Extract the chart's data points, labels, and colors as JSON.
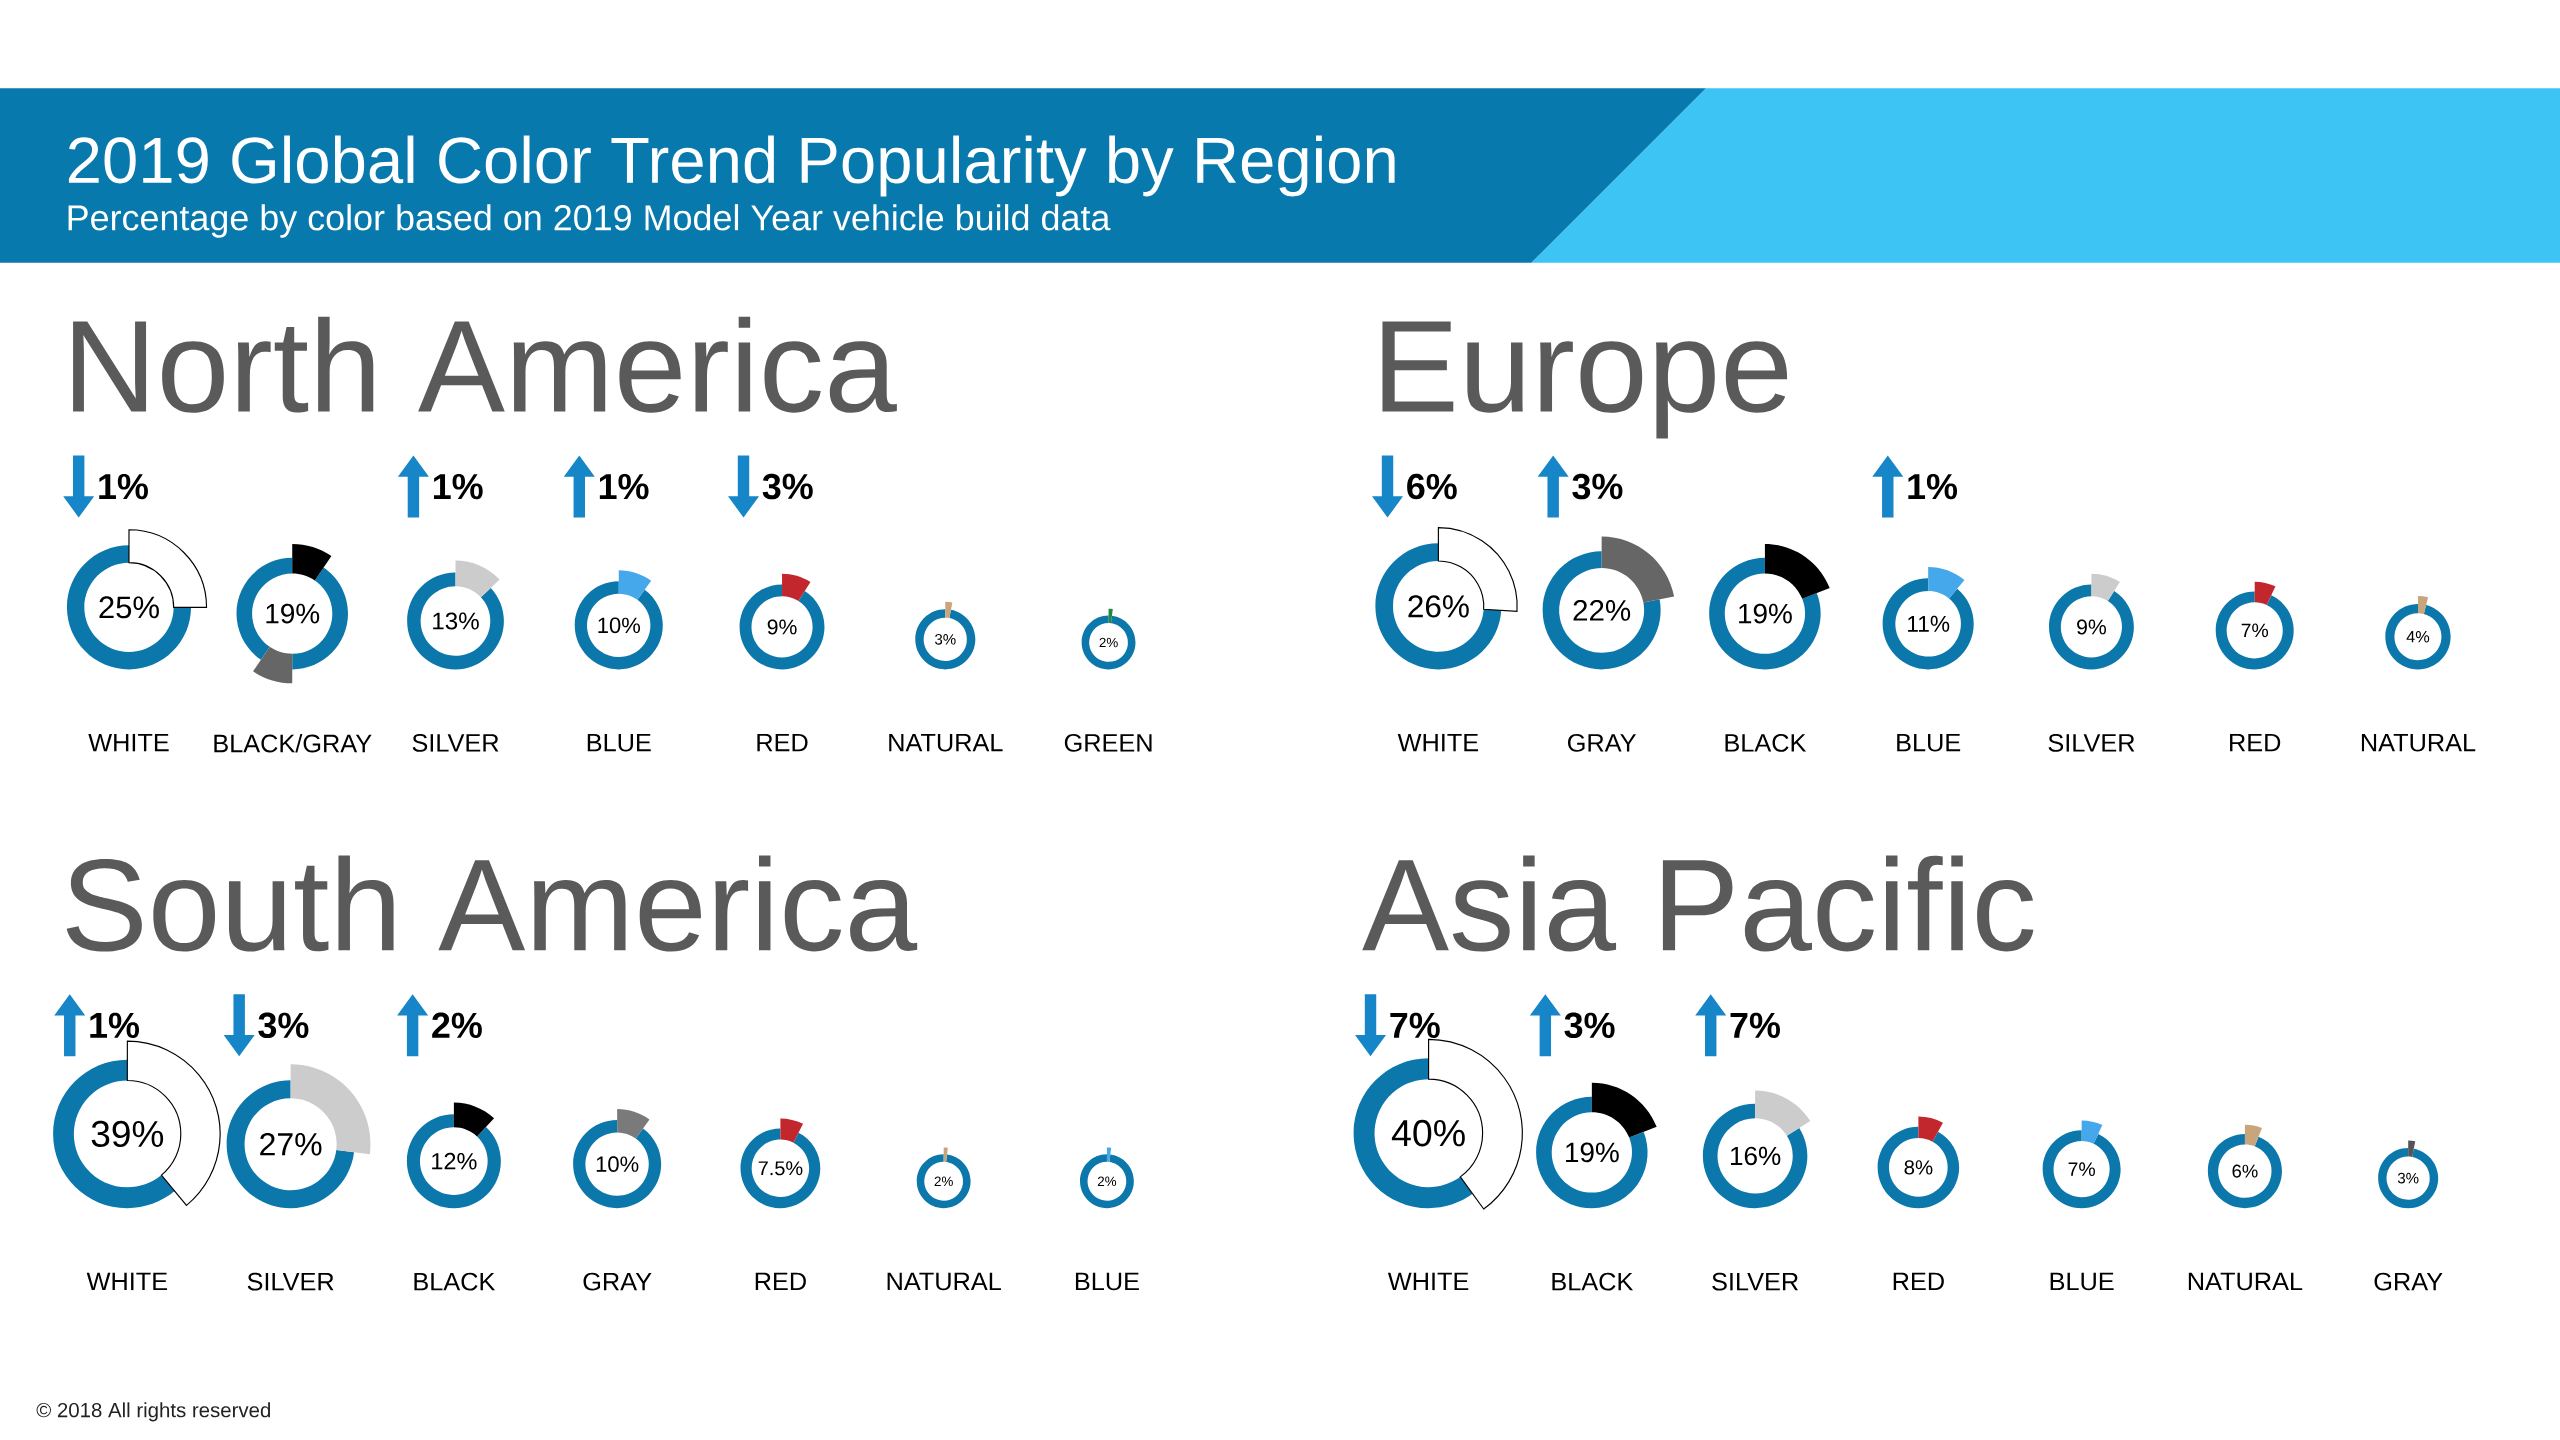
{
  "chart_data": [
    {
      "type": "other",
      "title": "2019 Global Color Trend Popularity by Region",
      "subtitle": "Percentage by color based on 2019 Model Year vehicle build data"
    },
    {
      "type": "other",
      "title": "North America",
      "categories": [
        "WHITE",
        "BLACK/GRAY",
        "SILVER",
        "BLUE",
        "RED",
        "NATURAL",
        "GREEN"
      ],
      "series": [
        {
          "color": "#0b77ab",
          "values": [
            25,
            19,
            13,
            10,
            9,
            3,
            2
          ],
          "value_labels": [
            "25%",
            "19%",
            "13%",
            "10%",
            "9%",
            "3%",
            "2%"
          ],
          "colors": [
            "#ffffff",
            [
              "#000000",
              "#666666"
            ],
            "#cccccc",
            "#45a8ea",
            "#c1272d",
            "#c8a57a",
            "#1f8a3c"
          ]
        },
        {
          "color": "#1686c9",
          "marker": "triangle",
          "values": [
            null,
            null,
            1,
            1,
            null,
            null,
            null
          ],
          "value_labels": [
            null,
            null,
            "1%",
            "1%",
            null,
            null,
            null
          ]
        },
        {
          "color": "#1686c9",
          "marker": "triangle-down",
          "values": [
            1,
            null,
            null,
            null,
            3,
            null,
            null
          ],
          "value_labels": [
            "1%",
            null,
            null,
            null,
            "3%",
            null,
            null
          ]
        }
      ]
    },
    {
      "type": "other",
      "title": "Europe",
      "categories": [
        "WHITE",
        "GRAY",
        "BLACK",
        "BLUE",
        "SILVER",
        "RED",
        "NATURAL"
      ],
      "series": [
        {
          "color": "#0b77ab",
          "values": [
            26,
            22,
            19,
            11,
            9,
            7,
            4
          ],
          "value_labels": [
            "26%",
            "22%",
            "19%",
            "11%",
            "9%",
            "7%",
            "4%"
          ],
          "colors": [
            "#ffffff",
            "#666666",
            "#000000",
            "#45a8ea",
            "#cccccc",
            "#c1272d",
            "#c8a57a"
          ]
        },
        {
          "color": "#1686c9",
          "marker": "triangle",
          "values": [
            null,
            3,
            null,
            1,
            null,
            null,
            null
          ],
          "value_labels": [
            null,
            "3%",
            null,
            "1%",
            null,
            null,
            null
          ]
        },
        {
          "color": "#1686c9",
          "marker": "triangle-down",
          "values": [
            6,
            null,
            null,
            null,
            null,
            null,
            null
          ],
          "value_labels": [
            "6%",
            null,
            null,
            null,
            null,
            null,
            null
          ]
        }
      ]
    },
    {
      "type": "other",
      "title": "South America",
      "categories": [
        "WHITE",
        "SILVER",
        "BLACK",
        "GRAY",
        "RED",
        "NATURAL",
        "BLUE"
      ],
      "series": [
        {
          "color": "#0b77ab",
          "values": [
            39,
            27,
            12,
            10,
            7.5,
            2,
            2
          ],
          "value_labels": [
            "39%",
            "27%",
            "12%",
            "10%",
            "7.5%",
            "2%",
            "2%"
          ],
          "colors": [
            "#ffffff",
            "#cccccc",
            "#000000",
            "#7a7a7a",
            "#c1272d",
            "#c8a57a",
            "#45a8ea"
          ]
        },
        {
          "color": "#1686c9",
          "marker": "triangle",
          "values": [
            1,
            null,
            2,
            null,
            null,
            null,
            null
          ],
          "value_labels": [
            "1%",
            null,
            "2%",
            null,
            null,
            null,
            null
          ]
        },
        {
          "color": "#1686c9",
          "marker": "triangle-down",
          "values": [
            null,
            3,
            null,
            null,
            null,
            null,
            null
          ],
          "value_labels": [
            null,
            "3%",
            null,
            null,
            null,
            null,
            null
          ]
        }
      ],
      "annotations": [
        "© 2018 All rights reserved"
      ]
    },
    {
      "type": "other",
      "title": "Asia Pacific",
      "categories": [
        "WHITE",
        "BLACK",
        "SILVER",
        "RED",
        "BLUE",
        "NATURAL",
        "GRAY"
      ],
      "series": [
        {
          "color": "#0b77ab",
          "values": [
            40,
            19,
            16,
            8,
            7,
            6,
            3
          ],
          "value_labels": [
            "40%",
            "19%",
            "16%",
            "8%",
            "7%",
            "6%",
            "3%"
          ],
          "colors": [
            "#ffffff",
            "#000000",
            "#cccccc",
            "#c1272d",
            "#45a8ea",
            "#c8a57a",
            "#555555"
          ]
        },
        {
          "color": "#1686c9",
          "marker": "triangle",
          "values": [
            null,
            3,
            7,
            null,
            null,
            null,
            null
          ],
          "value_labels": [
            null,
            "3%",
            "7%",
            null,
            null,
            null,
            null
          ]
        },
        {
          "color": "#1686c9",
          "marker": "triangle-down",
          "values": [
            7,
            null,
            null,
            null,
            null,
            null,
            null
          ],
          "value_labels": [
            "7%",
            null,
            null,
            null,
            null,
            null,
            null
          ]
        }
      ]
    }
  ]
}
